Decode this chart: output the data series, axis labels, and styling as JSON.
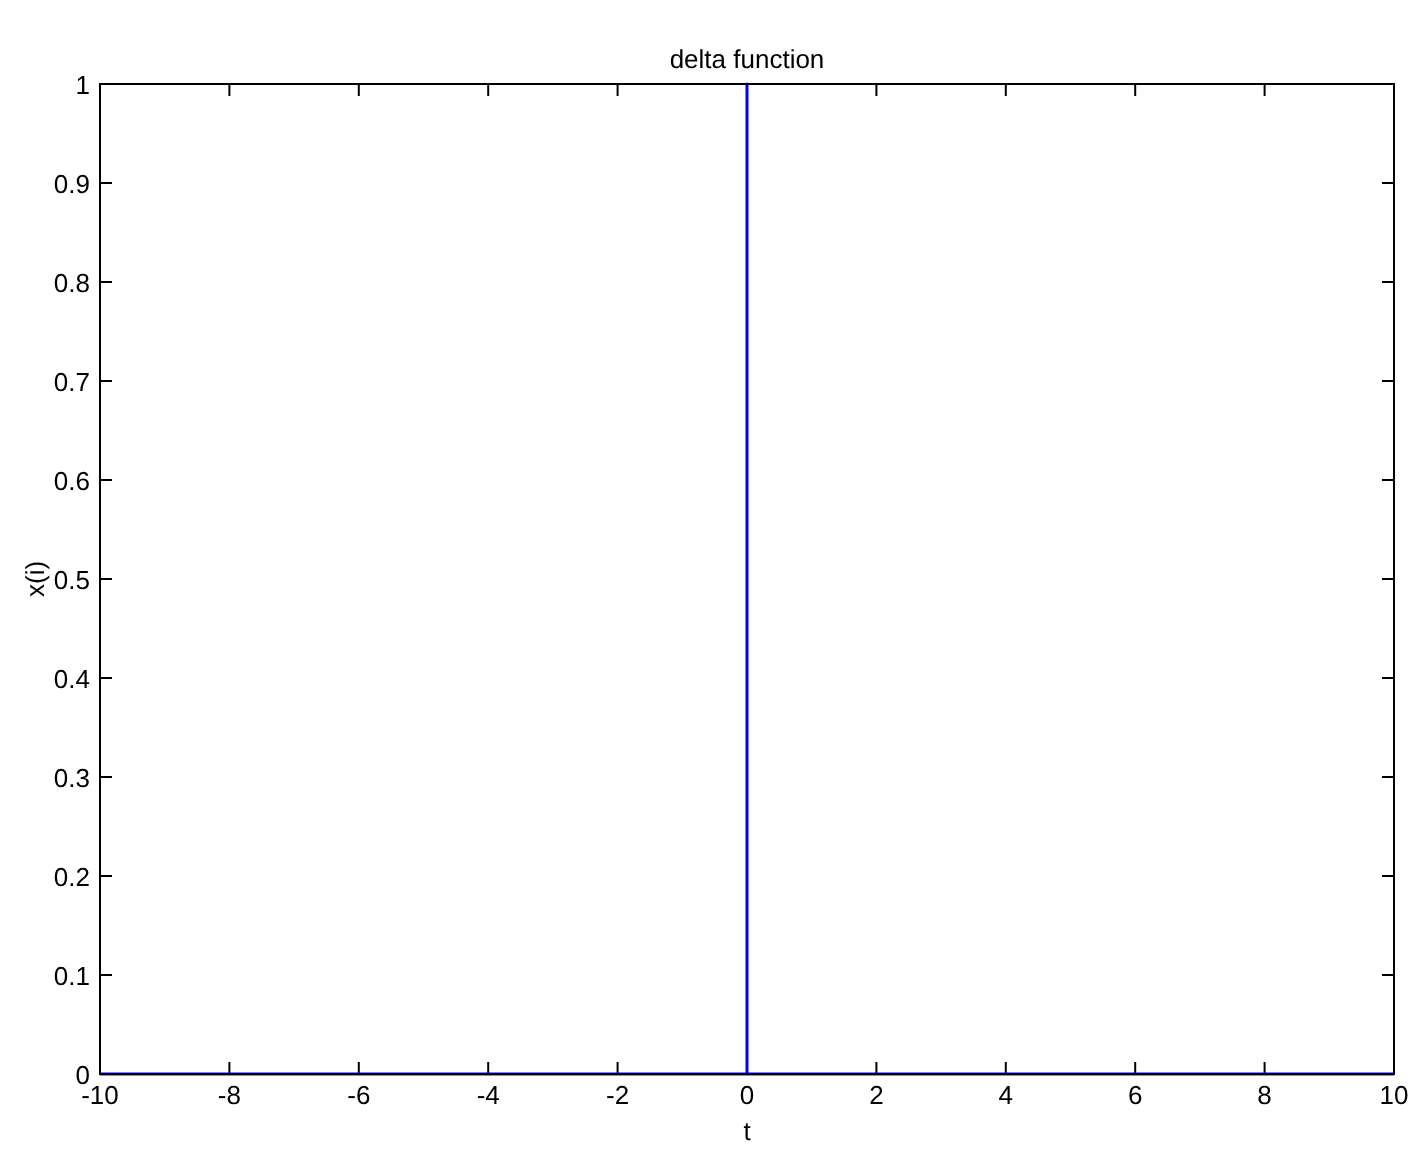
{
  "chart_data": {
    "type": "line",
    "title": "delta function",
    "xlabel": "t",
    "ylabel": "x(i)",
    "x": [
      -10,
      0,
      0,
      0,
      10
    ],
    "series": [
      {
        "color": "#0000ff",
        "values": [
          0,
          0,
          1,
          0,
          0
        ]
      }
    ],
    "xlim": [
      -10,
      10
    ],
    "xticks": [
      -10,
      -8,
      -6,
      -4,
      -2,
      0,
      2,
      4,
      6,
      8,
      10
    ],
    "ylim": [
      0,
      1
    ],
    "yticks": [
      0,
      0.1,
      0.2,
      0.3,
      0.4,
      0.5,
      0.6,
      0.7,
      0.8,
      0.9,
      1
    ],
    "grid": false,
    "marker": "none",
    "line_style": "solid"
  }
}
